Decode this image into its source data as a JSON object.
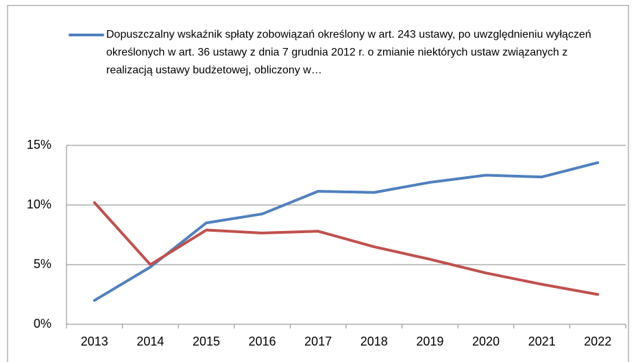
{
  "chart_data": {
    "type": "line",
    "categories": [
      "2013",
      "2014",
      "2015",
      "2016",
      "2017",
      "2018",
      "2019",
      "2020",
      "2021",
      "2022"
    ],
    "series": [
      {
        "name": "Dopuszczalny wskaźnik spłaty zobowiązań określony w art. 243 ustawy, po uwzględnieniu wyłączeń określonych w art. 36 ustawy z dnia 7 grudnia 2012 r. o zmianie niektórych ustaw związanych z realizacją ustawy budżetowej, obliczony w…",
        "color": "#4f81bd",
        "values": [
          2.0,
          4.8,
          8.5,
          9.25,
          11.15,
          11.05,
          11.9,
          12.5,
          12.35,
          13.55
        ]
      },
      {
        "color": "#c0504d",
        "values": [
          10.2,
          5.0,
          7.9,
          7.65,
          7.8,
          6.5,
          5.45,
          4.3,
          3.35,
          2.5
        ]
      }
    ],
    "ylim": [
      0,
      15
    ],
    "yticks": [
      {
        "value": 0,
        "label": "0%"
      },
      {
        "value": 5,
        "label": "5%"
      },
      {
        "value": 10,
        "label": "10%"
      },
      {
        "value": 15,
        "label": "15%"
      }
    ],
    "grid": true
  }
}
